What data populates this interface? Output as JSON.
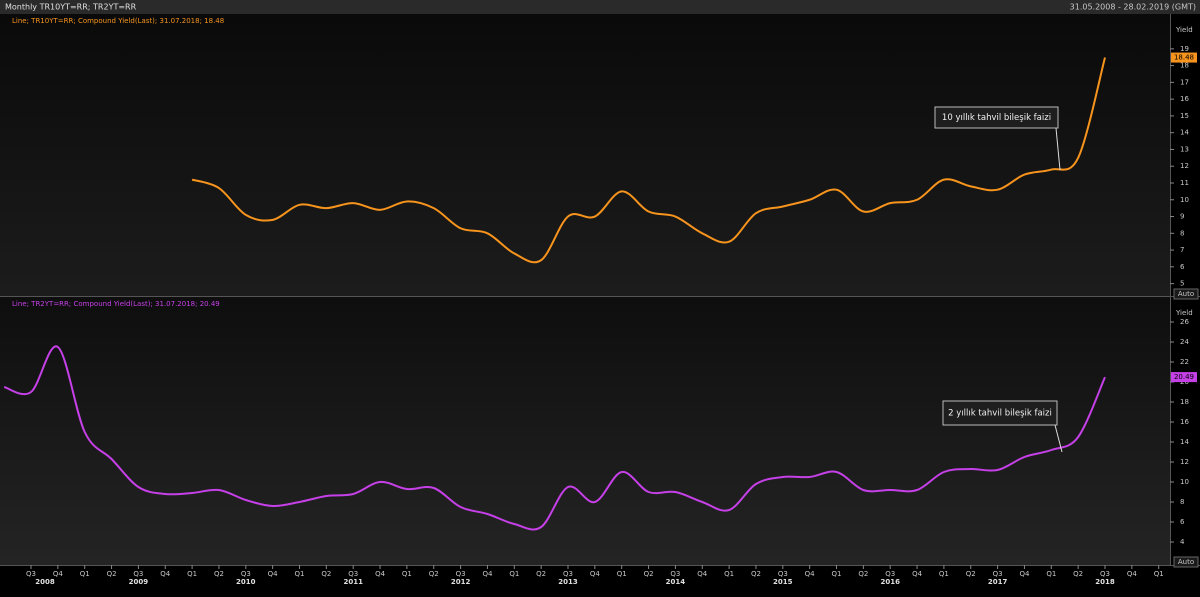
{
  "header": {
    "title": "Monthly TR10YT=RR; TR2YT=RR",
    "range": "31.05.2008 - 28.02.2019 (GMT)"
  },
  "chart_data": [
    {
      "type": "line",
      "ylabel": "Yield",
      "auto_label": "Auto",
      "annotation": "10 yıllık tahvil bileşik faizi",
      "x": [
        "2008 Q2",
        "2008 Q3",
        "2008 Q4",
        "2009 Q1",
        "2009 Q2",
        "2009 Q3",
        "2009 Q4",
        "2010 Q1",
        "2010 Q2",
        "2010 Q3",
        "2010 Q4",
        "2011 Q1",
        "2011 Q2",
        "2011 Q3",
        "2011 Q4",
        "2012 Q1",
        "2012 Q2",
        "2012 Q3",
        "2012 Q4",
        "2013 Q1",
        "2013 Q2",
        "2013 Q3",
        "2013 Q4",
        "2014 Q1",
        "2014 Q2",
        "2014 Q3",
        "2014 Q4",
        "2015 Q1",
        "2015 Q2",
        "2015 Q3",
        "2015 Q4",
        "2016 Q1",
        "2016 Q2",
        "2016 Q3",
        "2016 Q4",
        "2017 Q1",
        "2017 Q2",
        "2017 Q3",
        "2017 Q4",
        "2018 Q1",
        "2018 Q2",
        "2018 Q3"
      ],
      "series": [
        {
          "name": "Line; TR10YT=RR; Compound Yield(Last); 31.07.2018; 18.48",
          "color": "#f7941d",
          "values": [
            null,
            null,
            null,
            null,
            null,
            null,
            null,
            11.2,
            10.7,
            9.1,
            8.8,
            9.7,
            9.5,
            9.8,
            9.4,
            9.9,
            9.5,
            8.3,
            8.0,
            6.8,
            6.4,
            9.0,
            9.0,
            10.5,
            9.3,
            9.0,
            8.0,
            7.5,
            9.2,
            9.6,
            10.0,
            10.6,
            9.3,
            9.8,
            10.0,
            11.2,
            10.8,
            10.6,
            11.5,
            11.8,
            12.5,
            18.48
          ]
        }
      ],
      "ylim": [
        4.5,
        20.6
      ],
      "yticks": [
        5,
        6,
        7,
        8,
        9,
        10,
        11,
        12,
        13,
        14,
        15,
        16,
        17,
        18,
        19
      ]
    },
    {
      "type": "line",
      "ylabel": "Yield",
      "auto_label": "Auto",
      "annotation": "2 yıllık tahvil bileşik faizi",
      "x": [
        "2008 Q2",
        "2008 Q3",
        "2008 Q4",
        "2009 Q1",
        "2009 Q2",
        "2009 Q3",
        "2009 Q4",
        "2010 Q1",
        "2010 Q2",
        "2010 Q3",
        "2010 Q4",
        "2011 Q1",
        "2011 Q2",
        "2011 Q3",
        "2011 Q4",
        "2012 Q1",
        "2012 Q2",
        "2012 Q3",
        "2012 Q4",
        "2013 Q1",
        "2013 Q2",
        "2013 Q3",
        "2013 Q4",
        "2014 Q1",
        "2014 Q2",
        "2014 Q3",
        "2014 Q4",
        "2015 Q1",
        "2015 Q2",
        "2015 Q3",
        "2015 Q4",
        "2016 Q1",
        "2016 Q2",
        "2016 Q3",
        "2016 Q4",
        "2017 Q1",
        "2017 Q2",
        "2017 Q3",
        "2017 Q4",
        "2018 Q1",
        "2018 Q2",
        "2018 Q3"
      ],
      "series": [
        {
          "name": "Line; TR2YT=RR; Compound Yield(Last); 31.07.2018; 20.49",
          "color": "#c640e8",
          "values": [
            19.5,
            19.0,
            23.5,
            15.0,
            12.3,
            9.5,
            8.8,
            8.9,
            9.2,
            8.2,
            7.6,
            8.0,
            8.6,
            8.8,
            10.0,
            9.3,
            9.4,
            7.5,
            6.8,
            5.8,
            5.5,
            9.5,
            8.0,
            11.0,
            9.0,
            9.0,
            8.0,
            7.2,
            9.8,
            10.5,
            10.5,
            11.0,
            9.2,
            9.2,
            9.2,
            11.0,
            11.3,
            11.2,
            12.5,
            13.2,
            14.5,
            20.49
          ]
        }
      ],
      "ylim": [
        1.9,
        28
      ],
      "yticks": [
        4,
        6,
        8,
        10,
        12,
        14,
        16,
        18,
        20,
        22,
        24,
        26
      ],
      "xticks": [
        {
          "value": "2008 Q3",
          "label": "Q3"
        },
        {
          "value": "2008 Q4",
          "label": "Q4"
        },
        {
          "value": "2009 Q1",
          "label": "Q1"
        },
        {
          "value": "2009 Q2",
          "label": "Q2"
        },
        {
          "value": "2009 Q3",
          "label": "Q3"
        },
        {
          "value": "2009 Q4",
          "label": "Q4"
        },
        {
          "value": "2010 Q1",
          "label": "Q1"
        },
        {
          "value": "2010 Q2",
          "label": "Q2"
        },
        {
          "value": "2010 Q3",
          "label": "Q3"
        },
        {
          "value": "2010 Q4",
          "label": "Q4"
        },
        {
          "value": "2011 Q1",
          "label": "Q1"
        },
        {
          "value": "2011 Q2",
          "label": "Q2"
        },
        {
          "value": "2011 Q3",
          "label": "Q3"
        },
        {
          "value": "2011 Q4",
          "label": "Q4"
        },
        {
          "value": "2012 Q1",
          "label": "Q1"
        },
        {
          "value": "2012 Q2",
          "label": "Q2"
        },
        {
          "value": "2012 Q3",
          "label": "Q3"
        },
        {
          "value": "2012 Q4",
          "label": "Q4"
        },
        {
          "value": "2013 Q1",
          "label": "Q1"
        },
        {
          "value": "2013 Q2",
          "label": "Q2"
        },
        {
          "value": "2013 Q3",
          "label": "Q3"
        },
        {
          "value": "2013 Q4",
          "label": "Q4"
        },
        {
          "value": "2014 Q1",
          "label": "Q1"
        },
        {
          "value": "2014 Q2",
          "label": "Q2"
        },
        {
          "value": "2014 Q3",
          "label": "Q3"
        },
        {
          "value": "2014 Q4",
          "label": "Q4"
        },
        {
          "value": "2015 Q1",
          "label": "Q1"
        },
        {
          "value": "2015 Q2",
          "label": "Q2"
        },
        {
          "value": "2015 Q3",
          "label": "Q3"
        },
        {
          "value": "2015 Q4",
          "label": "Q4"
        },
        {
          "value": "2016 Q1",
          "label": "Q1"
        },
        {
          "value": "2016 Q2",
          "label": "Q2"
        },
        {
          "value": "2016 Q3",
          "label": "Q3"
        },
        {
          "value": "2016 Q4",
          "label": "Q4"
        },
        {
          "value": "2017 Q1",
          "label": "Q1"
        },
        {
          "value": "2017 Q2",
          "label": "Q2"
        },
        {
          "value": "2017 Q3",
          "label": "Q3"
        },
        {
          "value": "2017 Q4",
          "label": "Q4"
        },
        {
          "value": "2018 Q1",
          "label": "Q1"
        },
        {
          "value": "2018 Q2",
          "label": "Q2"
        },
        {
          "value": "2018 Q3",
          "label": "Q3"
        },
        {
          "value": "2018 Q4",
          "label": "Q4"
        },
        {
          "value": "2019 Q1",
          "label": "Q1"
        }
      ],
      "year_ticks": [
        {
          "value": "2008 Q3",
          "label": "2008"
        },
        {
          "value": "2009 Q3",
          "label": "2009"
        },
        {
          "value": "2010 Q3",
          "label": "2010"
        },
        {
          "value": "2011 Q3",
          "label": "2011"
        },
        {
          "value": "2012 Q3",
          "label": "2012"
        },
        {
          "value": "2013 Q3",
          "label": "2013"
        },
        {
          "value": "2014 Q3",
          "label": "2014"
        },
        {
          "value": "2015 Q3",
          "label": "2015"
        },
        {
          "value": "2016 Q3",
          "label": "2016"
        },
        {
          "value": "2017 Q3",
          "label": "2017"
        },
        {
          "value": "2018 Q3",
          "label": "2018"
        }
      ]
    }
  ]
}
